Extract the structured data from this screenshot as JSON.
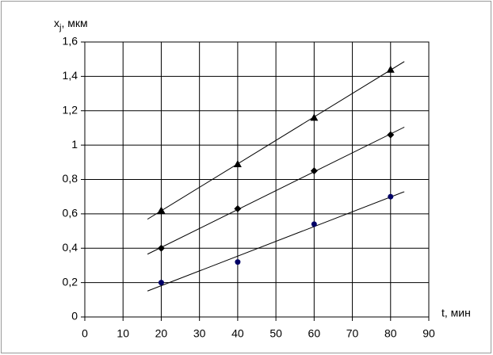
{
  "chart_data": {
    "type": "scatter",
    "y_label": [
      "x",
      "j",
      ", мкм"
    ],
    "x_label": "t, мин",
    "xlim": [
      0,
      90
    ],
    "xticks": [
      0,
      10,
      20,
      30,
      40,
      50,
      60,
      70,
      80,
      90
    ],
    "ylim": [
      0,
      1.6
    ],
    "yticks": [
      0,
      {
        "value": 0.2,
        "label": "0,2"
      },
      {
        "value": 0.4,
        "label": "0,4"
      },
      {
        "value": 0.6,
        "label": "0,6"
      },
      {
        "value": 0.8,
        "label": "0,8"
      },
      1,
      {
        "value": 1.2,
        "label": "1,2"
      },
      {
        "value": 1.4,
        "label": "1,4"
      },
      {
        "value": 1.6,
        "label": "1,6"
      }
    ],
    "grid": true,
    "trendline": "linear",
    "series": [
      {
        "marker": "triangle",
        "color": "#000000",
        "x": [
          20,
          40,
          60,
          80
        ],
        "values": [
          0.62,
          0.89,
          1.16,
          1.44
        ]
      },
      {
        "marker": "diamond",
        "color": "#000000",
        "x": [
          20,
          40,
          60,
          80
        ],
        "values": [
          0.4,
          0.63,
          0.85,
          1.06
        ]
      },
      {
        "marker": "circle",
        "color": "#000066",
        "x": [
          20,
          40,
          60,
          80
        ],
        "values": [
          0.2,
          0.32,
          0.54,
          0.7
        ]
      }
    ]
  }
}
